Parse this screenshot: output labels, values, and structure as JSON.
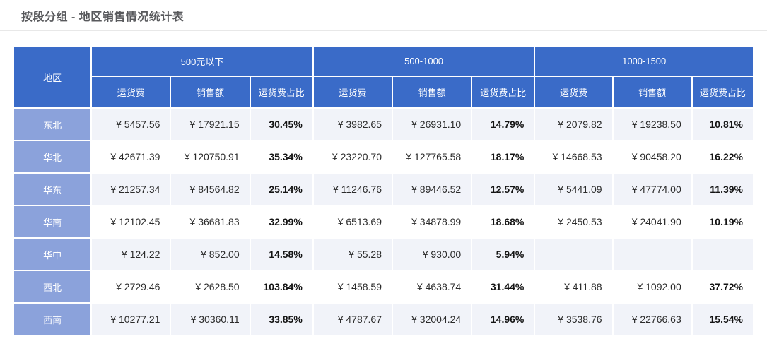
{
  "page": {
    "title": "按段分组 - 地区销售情况统计表"
  },
  "colors": {
    "header_bg": "#3a6bc8",
    "region_cell_bg": "#8ba2db",
    "alt_row_bg": "#f1f3f9",
    "grid_line": "#ffffff",
    "title_text": "#58595c",
    "percent_text": "#141414"
  },
  "table": {
    "region_header": "地区",
    "groups": [
      {
        "label": "500元以下",
        "columns": [
          "运货费",
          "销售额",
          "运货费占比"
        ]
      },
      {
        "label": "500-1000",
        "columns": [
          "运货费",
          "销售额",
          "运货费占比"
        ]
      },
      {
        "label": "1000-1500",
        "columns": [
          "运货费",
          "销售额",
          "运货费占比"
        ]
      }
    ],
    "rows": [
      {
        "region": "东北",
        "cells": [
          "¥ 5457.56",
          "¥ 17921.15",
          "30.45%",
          "¥ 3982.65",
          "¥ 26931.10",
          "14.79%",
          "¥ 2079.82",
          "¥ 19238.50",
          "10.81%"
        ]
      },
      {
        "region": "华北",
        "cells": [
          "¥ 42671.39",
          "¥ 120750.91",
          "35.34%",
          "¥ 23220.70",
          "¥ 127765.58",
          "18.17%",
          "¥ 14668.53",
          "¥ 90458.20",
          "16.22%"
        ]
      },
      {
        "region": "华东",
        "cells": [
          "¥ 21257.34",
          "¥ 84564.82",
          "25.14%",
          "¥ 11246.76",
          "¥ 89446.52",
          "12.57%",
          "¥ 5441.09",
          "¥ 47774.00",
          "11.39%"
        ]
      },
      {
        "region": "华南",
        "cells": [
          "¥ 12102.45",
          "¥ 36681.83",
          "32.99%",
          "¥ 6513.69",
          "¥ 34878.99",
          "18.68%",
          "¥ 2450.53",
          "¥ 24041.90",
          "10.19%"
        ]
      },
      {
        "region": "华中",
        "cells": [
          "¥ 124.22",
          "¥ 852.00",
          "14.58%",
          "¥ 55.28",
          "¥ 930.00",
          "5.94%",
          "",
          "",
          ""
        ]
      },
      {
        "region": "西北",
        "cells": [
          "¥ 2729.46",
          "¥ 2628.50",
          "103.84%",
          "¥ 1458.59",
          "¥ 4638.74",
          "31.44%",
          "¥ 411.88",
          "¥ 1092.00",
          "37.72%"
        ]
      },
      {
        "region": "西南",
        "cells": [
          "¥ 10277.21",
          "¥ 30360.11",
          "33.85%",
          "¥ 4787.67",
          "¥ 32004.24",
          "14.96%",
          "¥ 3538.76",
          "¥ 22766.63",
          "15.54%"
        ]
      }
    ]
  }
}
